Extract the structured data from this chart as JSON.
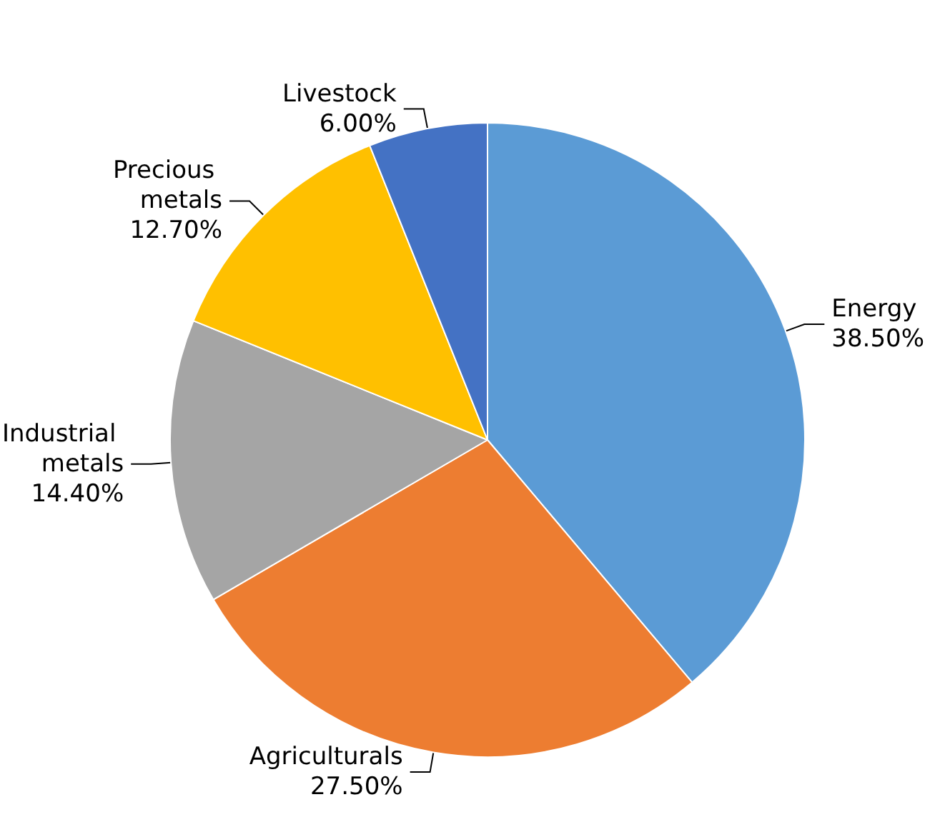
{
  "chart_data": {
    "type": "pie",
    "categories": [
      "Energy",
      "Agriculturals",
      "Industrial metals",
      "Precious metals",
      "Livestock"
    ],
    "values": [
      38.5,
      27.5,
      14.4,
      12.7,
      6.0
    ],
    "colors": [
      "#5b9bd5",
      "#ed7d31",
      "#a5a5a5",
      "#ffc000",
      "#4472c4"
    ],
    "value_labels": [
      "38.50%",
      "27.50%",
      "14.40%",
      "12.70%",
      "6.00%"
    ],
    "legend": false
  }
}
